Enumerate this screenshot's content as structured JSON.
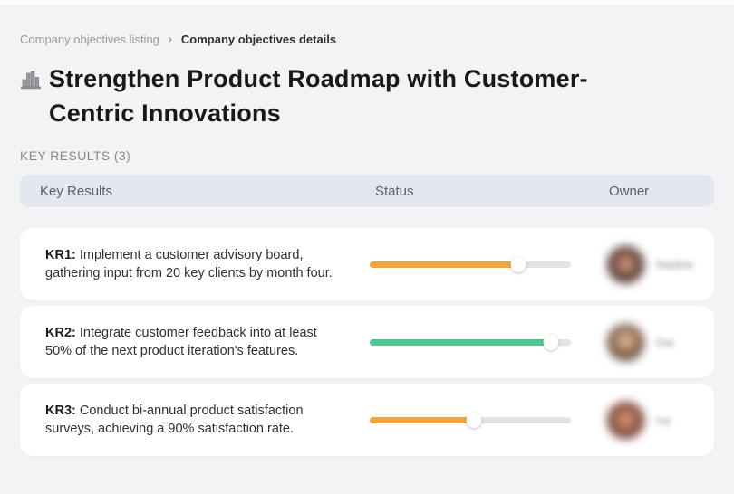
{
  "breadcrumb": {
    "separator": "›",
    "items": [
      {
        "label": "Company objectives listing"
      },
      {
        "label": "Company objectives details"
      }
    ]
  },
  "header": {
    "icon": "buildings-icon",
    "title": "Strengthen Product Roadmap with Customer-Centric Innovations"
  },
  "section": {
    "label": "KEY RESULTS (3)"
  },
  "table": {
    "columns": [
      "Key Results",
      "Status",
      "Owner"
    ],
    "rows": [
      {
        "kr_label": "KR1:",
        "kr_text": "Implement a customer advisory board, gathering input from 20 key clients by month four.",
        "progress_percent": 74,
        "progress_color": "#f7a23b",
        "owner": "Nadine"
      },
      {
        "kr_label": "KR2:",
        "kr_text": "Integrate customer feedback into at least 50% of the next product iteration's features.",
        "progress_percent": 90,
        "progress_color": "#4ac98e",
        "owner": "Dai"
      },
      {
        "kr_label": "KR3:",
        "kr_text": "Conduct bi-annual product satisfaction surveys, achieving a 90% satisfaction rate.",
        "progress_percent": 52,
        "progress_color": "#f7a23b",
        "owner": "Ivy"
      }
    ]
  },
  "colors": {
    "page_background": "#f2f3f5",
    "header_row_background": "#e3e7f0",
    "progress_track": "#e3e3e4",
    "progress_orange": "#f7a23b",
    "progress_green": "#4ac98e"
  }
}
